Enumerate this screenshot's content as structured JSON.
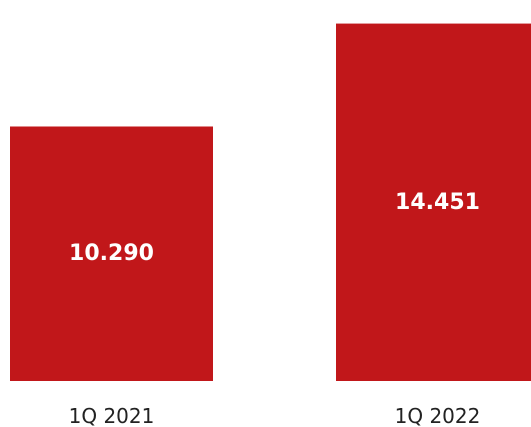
{
  "colors": {
    "bar": "#C1171A",
    "value_label": "#FFFFFF",
    "category_label": "#222222"
  },
  "chart_data": {
    "type": "bar",
    "categories": [
      "1Q 2021",
      "1Q 2022"
    ],
    "values": [
      10290,
      14451
    ],
    "value_labels": [
      "10.290",
      "14.451"
    ],
    "ylim": [
      0,
      15000
    ],
    "grid": false,
    "legend": "none"
  }
}
